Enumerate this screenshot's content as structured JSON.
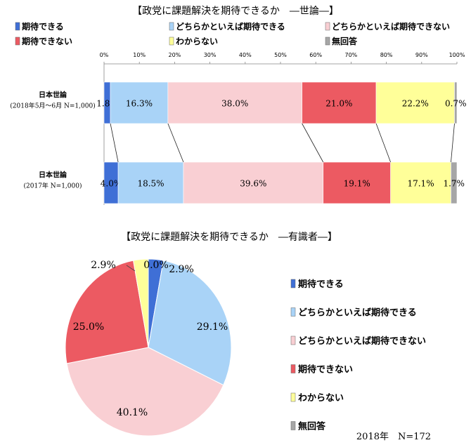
{
  "chart_data": [
    {
      "type": "bar",
      "orientation": "horizontal",
      "stacked": true,
      "title": "【政党に課題解決を期待できるか　―世論―】",
      "categories": [
        {
          "label": "日本世論",
          "sublabel": "(2018年5月～6月 N=1,000)"
        },
        {
          "label": "日本世論",
          "sublabel": "(2017年 N=1,000)"
        }
      ],
      "series": [
        {
          "name": "期待できる",
          "color": "#3f6fd6",
          "values": [
            1.8,
            4.0
          ]
        },
        {
          "name": "どちらかといえば期待できる",
          "color": "#a9d3f7",
          "values": [
            16.3,
            18.5
          ]
        },
        {
          "name": "どちらかといえば期待できない",
          "color": "#f9cfd3",
          "values": [
            38.0,
            39.6
          ]
        },
        {
          "name": "期待できない",
          "color": "#ec5a62",
          "values": [
            21.0,
            19.1
          ]
        },
        {
          "name": "わからない",
          "color": "#ffff99",
          "values": [
            22.2,
            17.1
          ]
        },
        {
          "name": "無回答",
          "color": "#a6a6a6",
          "values": [
            0.7,
            1.7
          ]
        }
      ],
      "value_labels": [
        [
          "1.8%",
          "16.3%",
          "38.0%",
          "21.0%",
          "22.2%",
          "0.7%"
        ],
        [
          "4.0%",
          "18.5%",
          "39.6%",
          "19.1%",
          "17.1%",
          "1.7%"
        ]
      ],
      "xlim": [
        0,
        100
      ],
      "ticks": [
        "0%",
        "10%",
        "20%",
        "30%",
        "40%",
        "50%",
        "60%",
        "70%",
        "80%",
        "90%",
        "100%"
      ],
      "legend_position": "top",
      "grid": false
    },
    {
      "type": "pie",
      "title": "【政党に課題解決を期待できるか　―有識者―】",
      "labels": [
        "期待できる",
        "どちらかといえば期待できる",
        "どちらかといえば期待できない",
        "期待できない",
        "わからない",
        "無回答"
      ],
      "values": [
        2.9,
        29.1,
        40.1,
        25.0,
        2.9,
        0.0
      ],
      "value_labels": [
        "2.9%",
        "29.1%",
        "40.1%",
        "25.0%",
        "2.9%",
        "0.0%"
      ],
      "colors": [
        "#3f6fd6",
        "#a9d3f7",
        "#f9cfd3",
        "#ec5a62",
        "#ffff99",
        "#a6a6a6"
      ],
      "legend_position": "right",
      "note": "2018年　N=172"
    }
  ]
}
